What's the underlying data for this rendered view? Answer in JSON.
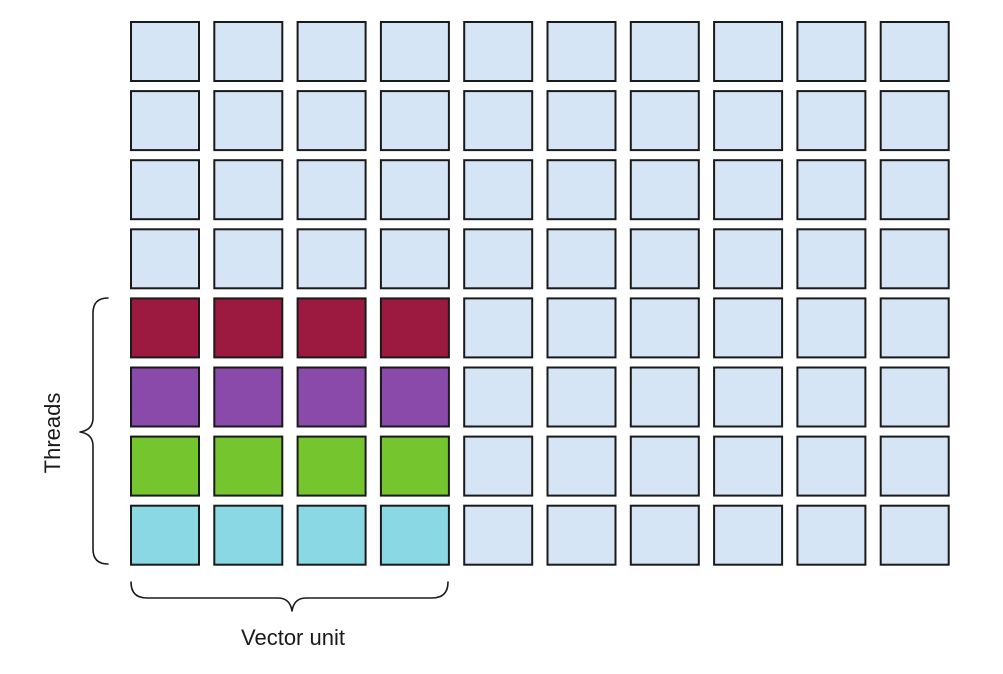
{
  "labels": {
    "threads": "Threads",
    "vector_unit": "Vector unit"
  },
  "grid": {
    "rows": 8,
    "cols": 10,
    "default_color": "#d5e5f5",
    "border_color": "#1a1a1a",
    "highlighted_rows": [
      {
        "row": 4,
        "cols": 4,
        "color": "#9c1a3f"
      },
      {
        "row": 5,
        "cols": 4,
        "color": "#8a4aa9"
      },
      {
        "row": 6,
        "cols": 4,
        "color": "#75c62e"
      },
      {
        "row": 7,
        "cols": 4,
        "color": "#8bd8e5"
      }
    ]
  }
}
